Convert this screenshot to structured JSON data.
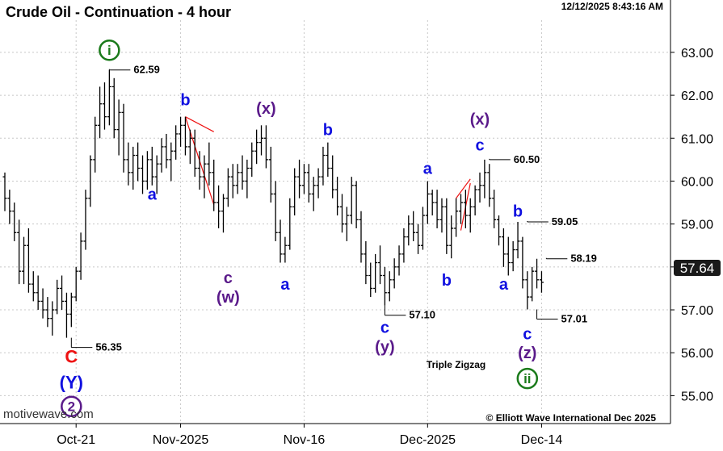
{
  "chart_data": {
    "type": "ohlc",
    "title": "Crude Oil - Continuation - 4 hour",
    "timestamp": "12/12/2025 8:43:16 AM",
    "watermark": "motivewave.com",
    "copyright": "© Elliott Wave International Dec 2025",
    "ylim": [
      54.35,
      63.75
    ],
    "y_ticks": [
      "55.00",
      "56.00",
      "57.00",
      "58.00",
      "59.00",
      "60.00",
      "61.00",
      "62.00",
      "63.00"
    ],
    "x_ticks": [
      "Oct-21",
      "Nov-2025",
      "Nov-16",
      "Dec-2025",
      "Dec-14"
    ],
    "last_price": "57.64",
    "grid": true,
    "colors": {
      "bars": "#000000",
      "blue": "#1010e0",
      "purple": "#5a1a8a",
      "green": "#1a7a1a",
      "red": "#ee1111",
      "price_box": "#1a1a1a"
    },
    "price_callouts": [
      {
        "label": "62.59",
        "bar": 22,
        "price": 62.59,
        "side": "top"
      },
      {
        "label": "56.35",
        "bar": 14,
        "price": 56.35,
        "side": "bottom"
      },
      {
        "label": "57.10",
        "bar": 80,
        "price": 57.1,
        "side": "bottom"
      },
      {
        "label": "60.50",
        "bar": 102,
        "price": 60.5,
        "side": "top"
      },
      {
        "label": "59.05",
        "bar": 110,
        "price": 59.05,
        "side": "top"
      },
      {
        "label": "58.19",
        "bar": 114,
        "price": 58.19,
        "side": "top"
      },
      {
        "label": "57.01",
        "bar": 112,
        "price": 57.01,
        "side": "bottom"
      }
    ],
    "wave_labels": [
      {
        "text": "i",
        "style": "circle",
        "color": "green",
        "bar": 22,
        "price": 63.05
      },
      {
        "text": "C",
        "style": "plain",
        "color": "red",
        "bar": 14,
        "price": 55.9
      },
      {
        "text": "(Y)",
        "style": "plain",
        "color": "blue",
        "bar": 14,
        "price": 55.3
      },
      {
        "text": "2",
        "style": "circle",
        "color": "purple",
        "bar": 14,
        "price": 54.75
      },
      {
        "text": "a",
        "style": "plain",
        "color": "blue",
        "bar": 31,
        "price": 59.7
      },
      {
        "text": "b",
        "style": "plain",
        "color": "blue",
        "bar": 38,
        "price": 61.9
      },
      {
        "text": "c",
        "style": "plain",
        "color": "purple",
        "bar": 47,
        "price": 57.75
      },
      {
        "text": "(w)",
        "style": "plain",
        "color": "purple",
        "bar": 47,
        "price": 57.3
      },
      {
        "text": "(x)",
        "style": "plain",
        "color": "purple",
        "bar": 55,
        "price": 61.7
      },
      {
        "text": "a",
        "style": "plain",
        "color": "blue",
        "bar": 59,
        "price": 57.6
      },
      {
        "text": "b",
        "style": "plain",
        "color": "blue",
        "bar": 68,
        "price": 61.2
      },
      {
        "text": "c",
        "style": "plain",
        "color": "blue",
        "bar": 80,
        "price": 56.6
      },
      {
        "text": "(y)",
        "style": "plain",
        "color": "purple",
        "bar": 80,
        "price": 56.15
      },
      {
        "text": "a",
        "style": "plain",
        "color": "blue",
        "bar": 89,
        "price": 60.3
      },
      {
        "text": "b",
        "style": "plain",
        "color": "blue",
        "bar": 93,
        "price": 57.7
      },
      {
        "text": "(x)",
        "style": "plain",
        "color": "purple",
        "bar": 100,
        "price": 61.45
      },
      {
        "text": "c",
        "style": "plain",
        "color": "blue",
        "bar": 100,
        "price": 60.85
      },
      {
        "text": "b",
        "style": "plain",
        "color": "blue",
        "bar": 108,
        "price": 59.3
      },
      {
        "text": "a",
        "style": "plain",
        "color": "blue",
        "bar": 105,
        "price": 57.6
      },
      {
        "text": "c",
        "style": "plain",
        "color": "blue",
        "bar": 110,
        "price": 56.45
      },
      {
        "text": "(z)",
        "style": "plain",
        "color": "purple",
        "bar": 110,
        "price": 56.0
      },
      {
        "text": "ii",
        "style": "circle",
        "color": "green",
        "bar": 110,
        "price": 55.4
      }
    ],
    "annotation": {
      "text": "Triple Zigzag",
      "bar": 95,
      "price": 55.65
    },
    "red_lines": [
      {
        "from_bar": 38,
        "from_price": 61.5,
        "to_bar": 44,
        "to_price": 61.15
      },
      {
        "from_bar": 38,
        "from_price": 61.5,
        "to_bar": 44,
        "to_price": 59.45
      },
      {
        "from_bar": 95,
        "from_price": 59.6,
        "to_bar": 98,
        "to_price": 60.05
      },
      {
        "from_bar": 96,
        "from_price": 58.85,
        "to_bar": 98,
        "to_price": 59.95
      }
    ],
    "ohlc": [
      [
        60.1,
        60.2,
        59.3,
        59.6
      ],
      [
        59.6,
        59.8,
        59.0,
        59.3
      ],
      [
        59.3,
        59.5,
        58.6,
        58.8
      ],
      [
        58.8,
        59.1,
        57.6,
        57.9
      ],
      [
        57.9,
        58.7,
        57.6,
        58.5
      ],
      [
        58.5,
        58.9,
        57.4,
        57.6
      ],
      [
        57.6,
        57.9,
        57.2,
        57.4
      ],
      [
        57.4,
        57.8,
        57.0,
        57.2
      ],
      [
        57.2,
        57.5,
        56.8,
        57.0
      ],
      [
        57.0,
        57.3,
        56.6,
        56.8
      ],
      [
        56.8,
        57.2,
        56.4,
        57.0
      ],
      [
        57.0,
        57.7,
        56.9,
        57.5
      ],
      [
        57.5,
        57.8,
        57.0,
        57.2
      ],
      [
        57.2,
        57.4,
        56.35,
        56.9
      ],
      [
        56.9,
        57.4,
        56.6,
        57.3
      ],
      [
        57.3,
        58.0,
        57.2,
        57.9
      ],
      [
        57.9,
        58.8,
        57.7,
        58.6
      ],
      [
        58.6,
        59.8,
        58.4,
        59.6
      ],
      [
        59.6,
        60.6,
        59.4,
        60.5
      ],
      [
        60.5,
        61.5,
        60.2,
        61.3
      ],
      [
        61.3,
        62.2,
        61.0,
        61.8
      ],
      [
        61.8,
        62.3,
        61.2,
        61.5
      ],
      [
        61.5,
        62.59,
        61.3,
        62.2
      ],
      [
        62.2,
        62.4,
        61.0,
        61.2
      ],
      [
        61.2,
        61.9,
        60.6,
        61.6
      ],
      [
        61.6,
        61.8,
        60.2,
        60.5
      ],
      [
        60.5,
        60.9,
        59.9,
        60.2
      ],
      [
        60.2,
        60.8,
        59.8,
        60.6
      ],
      [
        60.6,
        60.9,
        60.0,
        60.3
      ],
      [
        60.3,
        60.6,
        59.7,
        60.0
      ],
      [
        60.0,
        60.7,
        59.8,
        60.5
      ],
      [
        60.5,
        60.8,
        59.9,
        60.1
      ],
      [
        60.1,
        60.6,
        59.7,
        60.4
      ],
      [
        60.4,
        61.0,
        60.2,
        60.8
      ],
      [
        60.8,
        61.1,
        60.3,
        60.5
      ],
      [
        60.5,
        60.9,
        60.0,
        60.7
      ],
      [
        60.7,
        61.3,
        60.5,
        61.1
      ],
      [
        61.1,
        61.5,
        60.8,
        61.3
      ],
      [
        61.3,
        61.5,
        60.6,
        60.8
      ],
      [
        60.8,
        61.2,
        60.4,
        61.0
      ],
      [
        61.0,
        61.2,
        60.1,
        60.3
      ],
      [
        60.3,
        60.7,
        59.8,
        60.1
      ],
      [
        60.1,
        60.6,
        59.6,
        60.4
      ],
      [
        60.4,
        60.9,
        59.9,
        60.2
      ],
      [
        60.2,
        60.5,
        59.3,
        59.5
      ],
      [
        59.5,
        59.9,
        58.9,
        59.3
      ],
      [
        59.3,
        59.7,
        58.8,
        59.6
      ],
      [
        59.6,
        60.3,
        59.4,
        60.1
      ],
      [
        60.1,
        60.4,
        59.6,
        59.9
      ],
      [
        59.9,
        60.4,
        59.7,
        60.2
      ],
      [
        60.2,
        60.6,
        59.8,
        60.0
      ],
      [
        60.0,
        60.5,
        59.6,
        60.3
      ],
      [
        60.3,
        60.9,
        60.1,
        60.7
      ],
      [
        60.7,
        61.2,
        60.4,
        60.9
      ],
      [
        60.9,
        61.3,
        60.6,
        61.0
      ],
      [
        61.0,
        61.3,
        60.3,
        60.5
      ],
      [
        60.5,
        60.8,
        59.5,
        59.7
      ],
      [
        59.7,
        60.0,
        58.6,
        58.8
      ],
      [
        58.8,
        59.1,
        58.1,
        58.3
      ],
      [
        58.3,
        58.7,
        58.1,
        58.5
      ],
      [
        58.5,
        59.6,
        58.4,
        59.4
      ],
      [
        59.4,
        60.3,
        59.2,
        60.1
      ],
      [
        60.1,
        60.5,
        59.6,
        59.9
      ],
      [
        59.9,
        60.4,
        59.7,
        60.2
      ],
      [
        60.2,
        60.4,
        59.5,
        59.7
      ],
      [
        59.7,
        60.1,
        59.3,
        59.9
      ],
      [
        59.9,
        60.3,
        59.6,
        60.1
      ],
      [
        60.1,
        60.8,
        59.9,
        60.6
      ],
      [
        60.6,
        60.9,
        60.1,
        60.3
      ],
      [
        60.3,
        60.6,
        59.6,
        59.8
      ],
      [
        59.8,
        60.1,
        59.2,
        59.4
      ],
      [
        59.4,
        59.7,
        58.8,
        59.0
      ],
      [
        59.0,
        59.4,
        58.6,
        59.2
      ],
      [
        59.2,
        60.1,
        59.0,
        59.9
      ],
      [
        59.9,
        60.0,
        58.9,
        59.1
      ],
      [
        59.1,
        59.3,
        58.1,
        58.3
      ],
      [
        58.3,
        58.6,
        57.6,
        57.8
      ],
      [
        57.8,
        58.1,
        57.3,
        57.5
      ],
      [
        57.5,
        58.3,
        57.4,
        58.1
      ],
      [
        58.1,
        58.5,
        57.6,
        57.8
      ],
      [
        57.8,
        58.0,
        57.1,
        57.4
      ],
      [
        57.4,
        57.9,
        57.2,
        57.7
      ],
      [
        57.7,
        58.2,
        57.5,
        58.0
      ],
      [
        58.0,
        58.5,
        57.8,
        58.3
      ],
      [
        58.3,
        58.9,
        58.1,
        58.7
      ],
      [
        58.7,
        59.2,
        58.5,
        59.0
      ],
      [
        59.0,
        59.3,
        58.6,
        58.8
      ],
      [
        58.8,
        59.0,
        58.3,
        58.5
      ],
      [
        58.5,
        59.4,
        58.4,
        59.2
      ],
      [
        59.2,
        60.0,
        59.0,
        59.7
      ],
      [
        59.7,
        59.8,
        59.2,
        59.5
      ],
      [
        59.5,
        59.8,
        58.9,
        59.1
      ],
      [
        59.1,
        59.6,
        58.8,
        59.4
      ],
      [
        59.4,
        59.6,
        58.3,
        58.5
      ],
      [
        58.5,
        59.2,
        58.2,
        58.9
      ],
      [
        58.9,
        59.6,
        58.7,
        59.3
      ],
      [
        59.3,
        59.7,
        59.0,
        59.5
      ],
      [
        59.5,
        59.8,
        58.9,
        59.2
      ],
      [
        59.2,
        59.6,
        58.8,
        59.4
      ],
      [
        59.4,
        59.9,
        59.2,
        59.8
      ],
      [
        59.8,
        60.2,
        59.5,
        59.9
      ],
      [
        59.9,
        60.5,
        59.6,
        60.2
      ],
      [
        60.2,
        60.4,
        59.4,
        59.6
      ],
      [
        59.6,
        59.8,
        58.9,
        59.1
      ],
      [
        59.1,
        59.2,
        58.5,
        58.7
      ],
      [
        58.7,
        58.9,
        58.0,
        58.3
      ],
      [
        58.3,
        58.7,
        57.8,
        58.1
      ],
      [
        58.1,
        58.6,
        57.9,
        58.4
      ],
      [
        58.4,
        59.05,
        58.2,
        58.6
      ],
      [
        58.6,
        58.7,
        57.5,
        57.7
      ],
      [
        57.7,
        57.9,
        57.01,
        57.3
      ],
      [
        57.3,
        58.0,
        57.2,
        57.9
      ],
      [
        57.9,
        58.19,
        57.5,
        57.7
      ],
      [
        57.7,
        57.9,
        57.4,
        57.64
      ]
    ]
  }
}
